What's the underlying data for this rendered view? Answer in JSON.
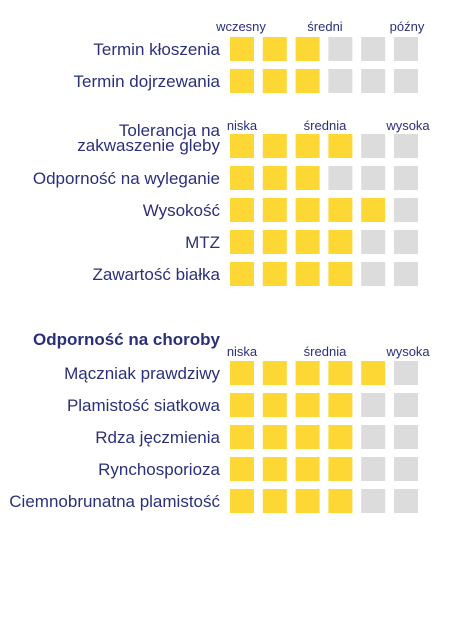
{
  "colors": {
    "filled": "#fdd835",
    "empty": "#dcdcdc",
    "text": "#2b3079"
  },
  "chart_data": [
    {
      "type": "table",
      "max_score": 6,
      "scale_labels": [
        "wczesny",
        "średni",
        "późny"
      ],
      "rows": [
        {
          "label": [
            "Termin kłoszenia"
          ],
          "value": 3
        },
        {
          "label": [
            "Termin dojrzewania"
          ],
          "value": 3
        }
      ]
    },
    {
      "type": "table",
      "max_score": 6,
      "scale_labels": [
        "niska",
        "średnia",
        "wysoka"
      ],
      "rows": [
        {
          "label": [
            "Tolerancja na",
            "zakwaszenie gleby"
          ],
          "value": 4
        },
        {
          "label": [
            "Odporność na wyleganie"
          ],
          "value": 3
        },
        {
          "label": [
            "Wysokość"
          ],
          "value": 5
        },
        {
          "label": [
            "MTZ"
          ],
          "value": 4
        },
        {
          "label": [
            "Zawartość białka"
          ],
          "value": 4
        }
      ]
    },
    {
      "type": "table",
      "section_title": "Odporność na choroby",
      "max_score": 6,
      "scale_labels": [
        "niska",
        "średnia",
        "wysoka"
      ],
      "rows": [
        {
          "label": [
            "Mączniak prawdziwy"
          ],
          "value": 5
        },
        {
          "label": [
            "Plamistość siatkowa"
          ],
          "value": 4
        },
        {
          "label": [
            "Rdza jęczmienia"
          ],
          "value": 4
        },
        {
          "label": [
            "Rynchosporioza"
          ],
          "value": 4
        },
        {
          "label": [
            "Ciemnobrunatna plamistość"
          ],
          "value": 4
        }
      ]
    }
  ]
}
